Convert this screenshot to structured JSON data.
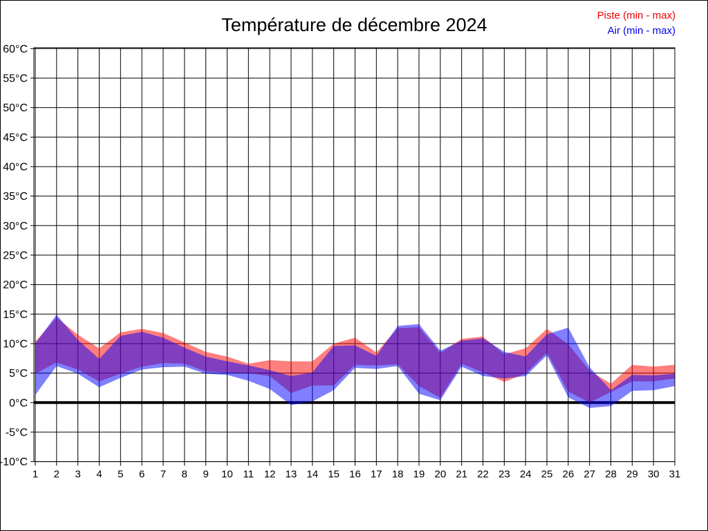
{
  "page": {
    "background": "#ffffff",
    "frame_border_color": "#000000"
  },
  "chart_data": {
    "type": "area",
    "title": "Température de décembre 2024",
    "xlabel": "",
    "ylabel": "",
    "y_unit": "°C",
    "ylim": [
      -10,
      60
    ],
    "y_ticks": [
      60,
      55,
      50,
      45,
      40,
      35,
      30,
      25,
      20,
      15,
      10,
      5,
      0,
      -5,
      -10
    ],
    "x_days": [
      1,
      2,
      3,
      4,
      5,
      6,
      7,
      8,
      9,
      10,
      11,
      12,
      13,
      14,
      15,
      16,
      17,
      18,
      19,
      20,
      21,
      22,
      23,
      24,
      25,
      26,
      27,
      28,
      29,
      30,
      31
    ],
    "grid": true,
    "zero_line": true,
    "legend_position": "top-right",
    "series": [
      {
        "name": "Piste (min - max)",
        "legend_color": "#ee0000",
        "fill": "#ff0000",
        "fill_opacity": 0.5,
        "min": [
          4.9,
          6.8,
          5.6,
          3.6,
          4.9,
          6.1,
          6.7,
          6.6,
          5.3,
          5.1,
          5.0,
          4.5,
          1.6,
          2.9,
          2.9,
          6.4,
          6.3,
          6.5,
          2.8,
          0.8,
          6.6,
          5.1,
          3.5,
          4.9,
          8.5,
          1.9,
          0.0,
          1.8,
          3.6,
          3.6,
          4.1
        ],
        "max": [
          10.3,
          14.4,
          11.5,
          9.2,
          11.9,
          12.5,
          11.8,
          10.2,
          8.6,
          7.8,
          6.6,
          7.2,
          7.0,
          7.0,
          10.0,
          11.0,
          8.5,
          12.6,
          12.8,
          8.4,
          10.8,
          11.2,
          8.2,
          9.2,
          12.5,
          9.9,
          5.4,
          3.2,
          6.4,
          6.1,
          6.4
        ]
      },
      {
        "name": "Air (min - max)",
        "legend_color": "#0000ee",
        "fill": "#0000ff",
        "fill_opacity": 0.5,
        "min": [
          1.3,
          6.2,
          4.9,
          2.6,
          4.2,
          5.6,
          6.0,
          6.1,
          4.9,
          4.7,
          3.7,
          2.3,
          -0.4,
          0.2,
          2.1,
          5.9,
          5.7,
          6.2,
          1.5,
          0.4,
          6.1,
          4.5,
          4.1,
          4.5,
          8.0,
          0.9,
          -0.9,
          -0.6,
          2.0,
          2.1,
          2.8
        ],
        "max": [
          10.0,
          14.9,
          10.6,
          7.4,
          11.3,
          12.0,
          11.0,
          9.3,
          7.8,
          7.0,
          6.3,
          5.5,
          4.5,
          5.1,
          9.6,
          9.7,
          7.9,
          13.0,
          13.3,
          8.8,
          10.5,
          10.9,
          8.6,
          7.8,
          11.6,
          12.7,
          6.0,
          2.1,
          4.7,
          4.6,
          4.9
        ]
      }
    ]
  }
}
